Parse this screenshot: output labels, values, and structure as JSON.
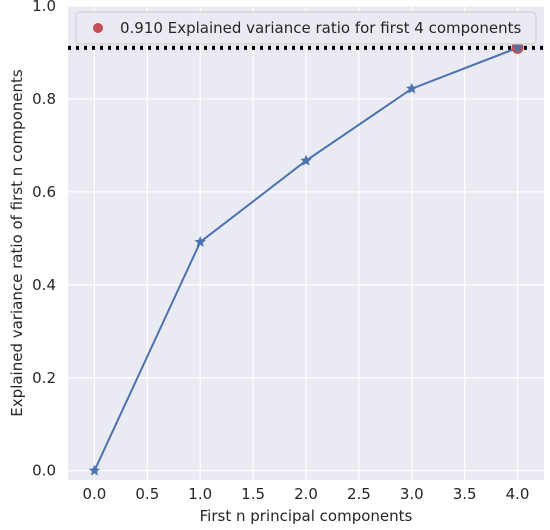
{
  "chart_data": {
    "type": "line",
    "x": [
      0.0,
      1.0,
      2.0,
      3.0,
      4.0
    ],
    "series": [
      {
        "values": [
          0.0,
          0.492,
          0.667,
          0.822,
          0.91
        ],
        "color": "#4c72b0",
        "marker": "star"
      }
    ],
    "highlight_point": {
      "x": 4.0,
      "y": 0.91,
      "color": "#c44e52"
    },
    "threshold_line": {
      "y": 0.91,
      "style": "dotted",
      "color": "#000000"
    },
    "legend": {
      "label": "0.910 Explained variance ratio for first 4 components",
      "placement": "top-right"
    },
    "xlabel": "First n principal components",
    "ylabel": "Explained variance ratio of first n components",
    "xlim": [
      -0.25,
      4.25
    ],
    "ylim": [
      -0.02,
      1.0
    ],
    "xticks": [
      "0.0",
      "0.5",
      "1.0",
      "1.5",
      "2.0",
      "2.5",
      "3.0",
      "3.5",
      "4.0"
    ],
    "yticks": [
      "0.0",
      "0.2",
      "0.4",
      "0.6",
      "0.8",
      "1.0"
    ],
    "grid": true,
    "background": "#eaeaf2"
  }
}
